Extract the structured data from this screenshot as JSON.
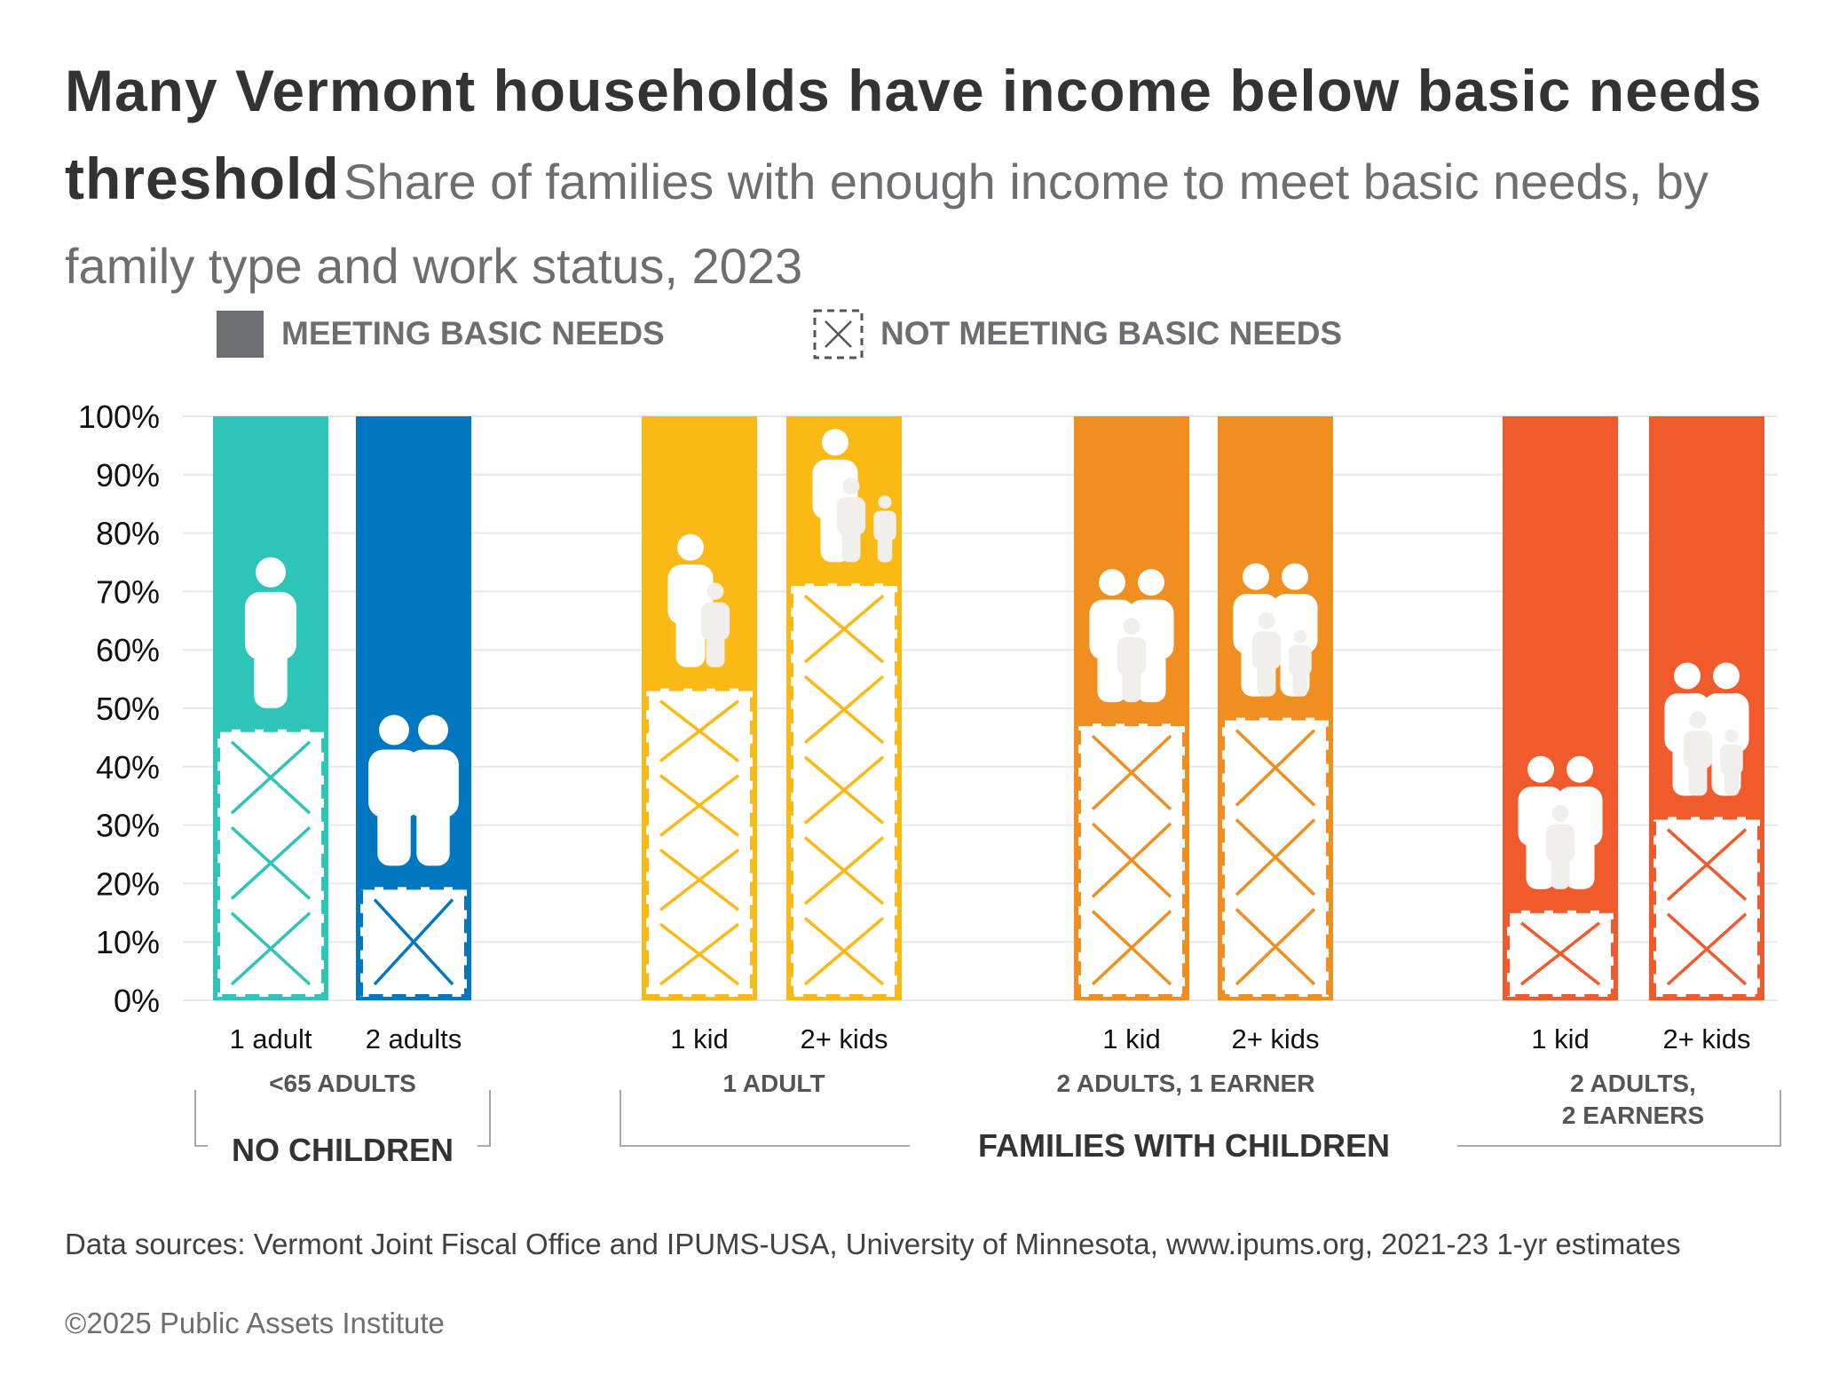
{
  "title": "Many Vermont households have income below basic needs threshold",
  "subtitle": "Share of families with enough income to meet basic needs, by family type and work status, 2023",
  "legend": {
    "meeting": "MEETING BASIC NEEDS",
    "not_meeting": "NOT MEETING BASIC NEEDS"
  },
  "colors": {
    "meeting_swatch": "#6d6e71",
    "teal": "#2ec5b8",
    "blue": "#0077c0",
    "yellow": "#fbb916",
    "orange": "#f08e1f",
    "red": "#f15a2b"
  },
  "groups": {
    "no_children": "NO CHILDREN",
    "families_with_children": "FAMILIES WITH CHILDREN",
    "sub": [
      "<65 ADULTS",
      "1 ADULT",
      "2 ADULTS, 1 EARNER",
      "2 ADULTS,",
      "2 EARNERS"
    ]
  },
  "chart_data": {
    "type": "bar",
    "stacked": true,
    "ylim": [
      0,
      100
    ],
    "yticks": [
      "0%",
      "10%",
      "20%",
      "30%",
      "40%",
      "50%",
      "60%",
      "70%",
      "80%",
      "90%",
      "100%"
    ],
    "grid": true,
    "legend_position": "top",
    "categories": [
      "1 adult",
      "2 adults",
      "1 kid",
      "2+ kids",
      "1 kid",
      "2+ kids",
      "1 kid",
      "2+ kids"
    ],
    "category_groups": [
      "<65 ADULTS",
      "<65 ADULTS",
      "1 ADULT",
      "1 ADULT",
      "2 ADULTS, 1 EARNER",
      "2 ADULTS, 1 EARNER",
      "2 ADULTS, 2 EARNERS",
      "2 ADULTS, 2 EARNERS"
    ],
    "bar_colors": [
      "#2ec5b8",
      "#0077c0",
      "#fbb916",
      "#fbb916",
      "#f08e1f",
      "#f08e1f",
      "#f15a2b",
      "#f15a2b"
    ],
    "icons": [
      {
        "adults": 1,
        "kids": 0
      },
      {
        "adults": 2,
        "kids": 0
      },
      {
        "adults": 1,
        "kids": 1
      },
      {
        "adults": 1,
        "kids": 2
      },
      {
        "adults": 2,
        "kids": 1
      },
      {
        "adults": 2,
        "kids": 2
      },
      {
        "adults": 2,
        "kids": 1
      },
      {
        "adults": 2,
        "kids": 2
      }
    ],
    "series": [
      {
        "name": "NOT MEETING BASIC NEEDS",
        "values": [
          47,
          20,
          54,
          72,
          48,
          49,
          16,
          32
        ]
      },
      {
        "name": "MEETING BASIC NEEDS",
        "values": [
          53,
          80,
          46,
          28,
          52,
          51,
          84,
          68
        ]
      }
    ]
  },
  "footer": {
    "source": "Data sources: Vermont Joint Fiscal Office and IPUMS-USA, University of Minnesota, www.ipums.org, 2021-23 1-yr estimates",
    "copyright": "©2025 Public Assets Institute"
  }
}
